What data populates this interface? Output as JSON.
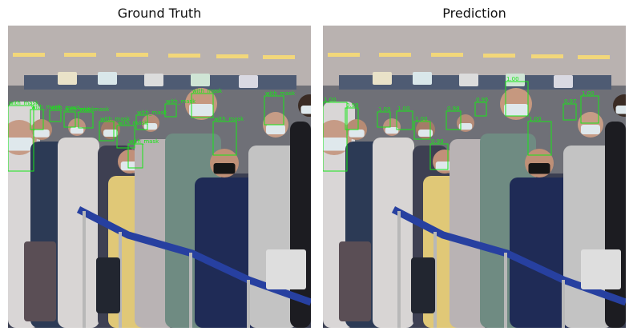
{
  "panels": [
    {
      "title": "Ground Truth",
      "box_color": "#19e619",
      "boxes": [
        {
          "label": "with_mask"
        },
        {
          "label": "with_mask"
        },
        {
          "label": "with_mask"
        },
        {
          "label": "with_mask"
        },
        {
          "label": "with_mask"
        },
        {
          "label": "with_mask"
        },
        {
          "label": "with_mask"
        },
        {
          "label": "with_mask"
        },
        {
          "label": "with_mask"
        },
        {
          "label": "with_mask"
        },
        {
          "label": "with_mask"
        },
        {
          "label": "with_mask"
        },
        {
          "label": "with_mask"
        }
      ]
    },
    {
      "title": "Prediction",
      "box_color": "#19e619",
      "boxes": [
        {
          "label": "1.00"
        },
        {
          "label": "0.99"
        },
        {
          "label": "1.00"
        },
        {
          "label": "1.00"
        },
        {
          "label": "1.00"
        },
        {
          "label": "0.98"
        },
        {
          "label": "0.99"
        },
        {
          "label": "0.95"
        },
        {
          "label": "1.00"
        },
        {
          "label": "1.00"
        },
        {
          "label": "0.97"
        },
        {
          "label": "1.00"
        }
      ]
    }
  ]
}
